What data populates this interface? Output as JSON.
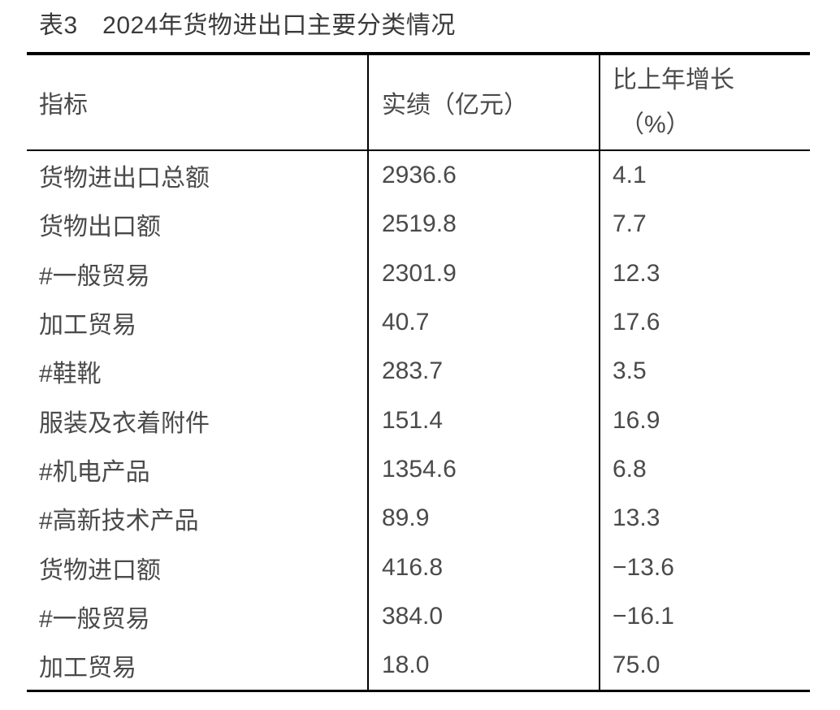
{
  "title": "表3　2024年货物进出口主要分类情况",
  "table": {
    "header": {
      "indicator": "指标",
      "value": "实绩（亿元）",
      "growth_line1": "比上年增长",
      "growth_line2": "（%）"
    },
    "rows": [
      {
        "indicator": "货物进出口总额",
        "value": "2936.6",
        "growth": "4.1"
      },
      {
        "indicator": "货物出口额",
        "value": "2519.8",
        "growth": "7.7"
      },
      {
        "indicator": "#一般贸易",
        "value": "2301.9",
        "growth": "12.3"
      },
      {
        "indicator": "加工贸易",
        "value": "40.7",
        "growth": "17.6"
      },
      {
        "indicator": "#鞋靴",
        "value": "283.7",
        "growth": "3.5"
      },
      {
        "indicator": "服装及衣着附件",
        "value": "151.4",
        "growth": "16.9"
      },
      {
        "indicator": "#机电产品",
        "value": "1354.6",
        "growth": "6.8"
      },
      {
        "indicator": "#高新技术产品",
        "value": "89.9",
        "growth": "13.3"
      },
      {
        "indicator": "货物进口额",
        "value": "416.8",
        "growth": "−13.6"
      },
      {
        "indicator": "#一般贸易",
        "value": "384.0",
        "growth": "−16.1"
      },
      {
        "indicator": "加工贸易",
        "value": "18.0",
        "growth": "75.0"
      }
    ]
  },
  "colors": {
    "border": "#000000",
    "text": "#4a4a4a",
    "title_text": "#3a3a3a",
    "background": "#ffffff"
  }
}
